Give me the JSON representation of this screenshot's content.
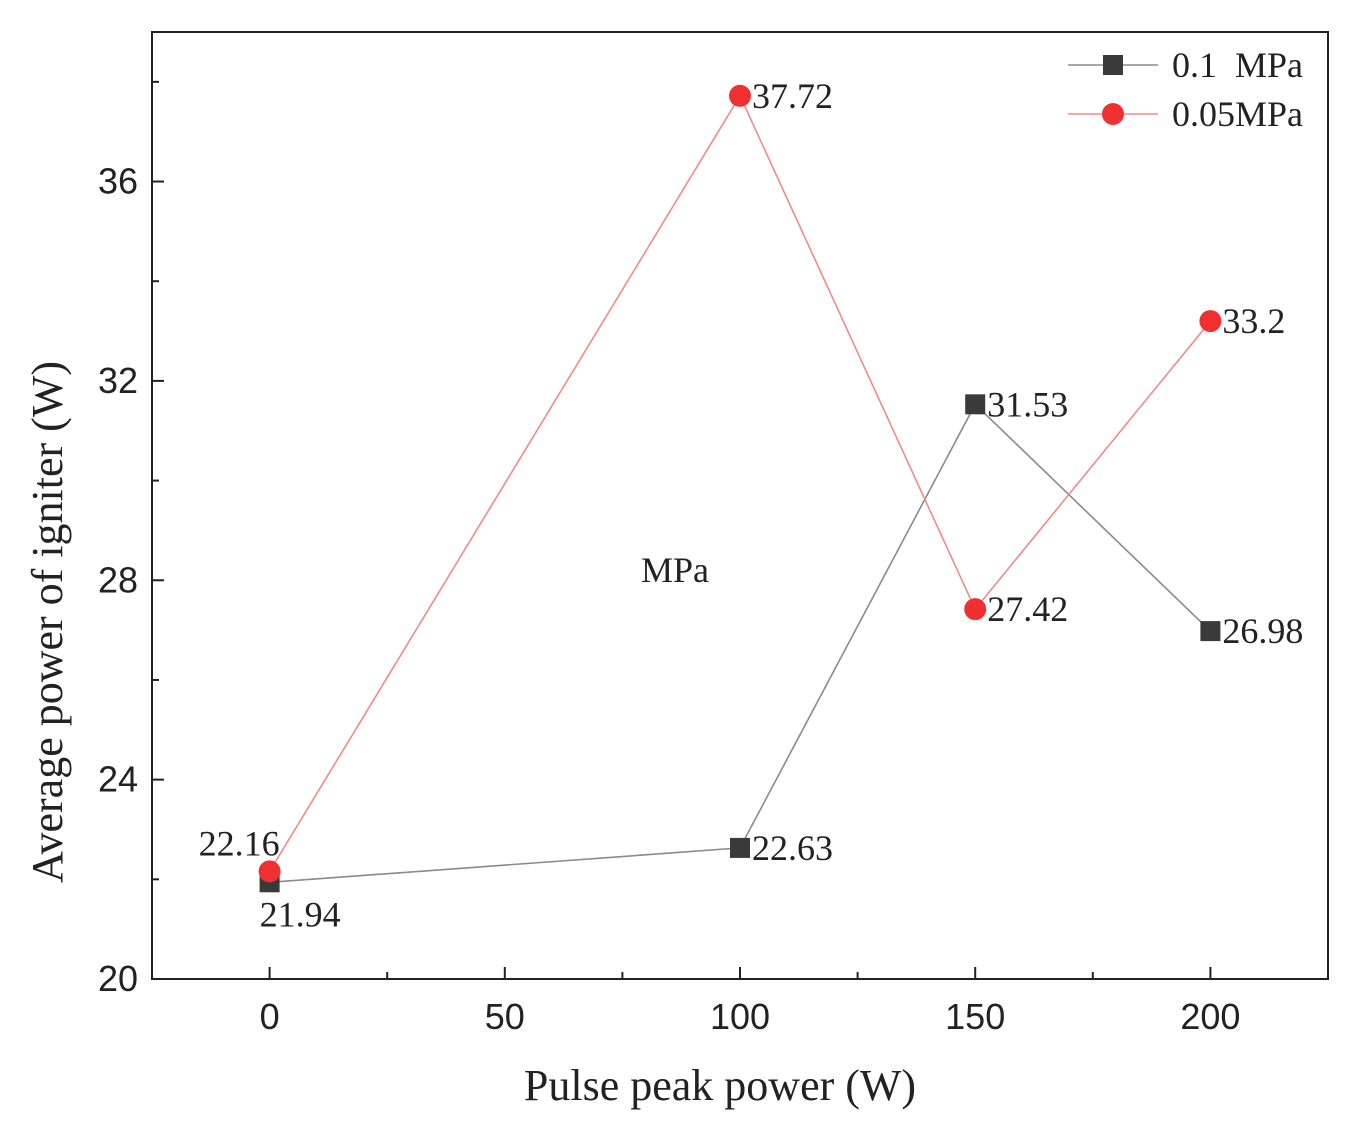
{
  "chart_data": {
    "type": "line",
    "title": "",
    "xlabel": "Pulse peak power (W)",
    "ylabel": "Average power of igniter (W)",
    "xlim": [
      -25,
      225
    ],
    "ylim": [
      20,
      39
    ],
    "x_ticks": [
      0,
      50,
      100,
      150,
      200
    ],
    "x_tick_labels": [
      "0",
      "50",
      "100",
      "150",
      "200"
    ],
    "x_minor_ticks": [
      25,
      75,
      125,
      175
    ],
    "y_ticks": [
      20,
      24,
      28,
      32,
      36
    ],
    "y_tick_labels": [
      "20",
      "24",
      "28",
      "32",
      "36"
    ],
    "y_minor_ticks": [
      22,
      26,
      30,
      34,
      38
    ],
    "grid": false,
    "legend_position": "top-right",
    "annotation": "MPa",
    "series": [
      {
        "name": "0.1  MPa",
        "marker": "square",
        "color": "#3a3a3a",
        "line_color": "#8a8a8a",
        "x": [
          0,
          100,
          150,
          200
        ],
        "values": [
          21.94,
          22.63,
          31.53,
          26.98
        ],
        "labels": [
          "21.94",
          "22.63",
          "31.53",
          "26.98"
        ]
      },
      {
        "name": "0.05MPa",
        "marker": "circle",
        "color": "#f03030",
        "line_color": "#f08a8a",
        "x": [
          0,
          100,
          150,
          200
        ],
        "values": [
          22.16,
          37.72,
          27.42,
          33.2
        ],
        "labels": [
          "22.16",
          "37.72",
          "27.42",
          "33.2"
        ]
      }
    ]
  }
}
